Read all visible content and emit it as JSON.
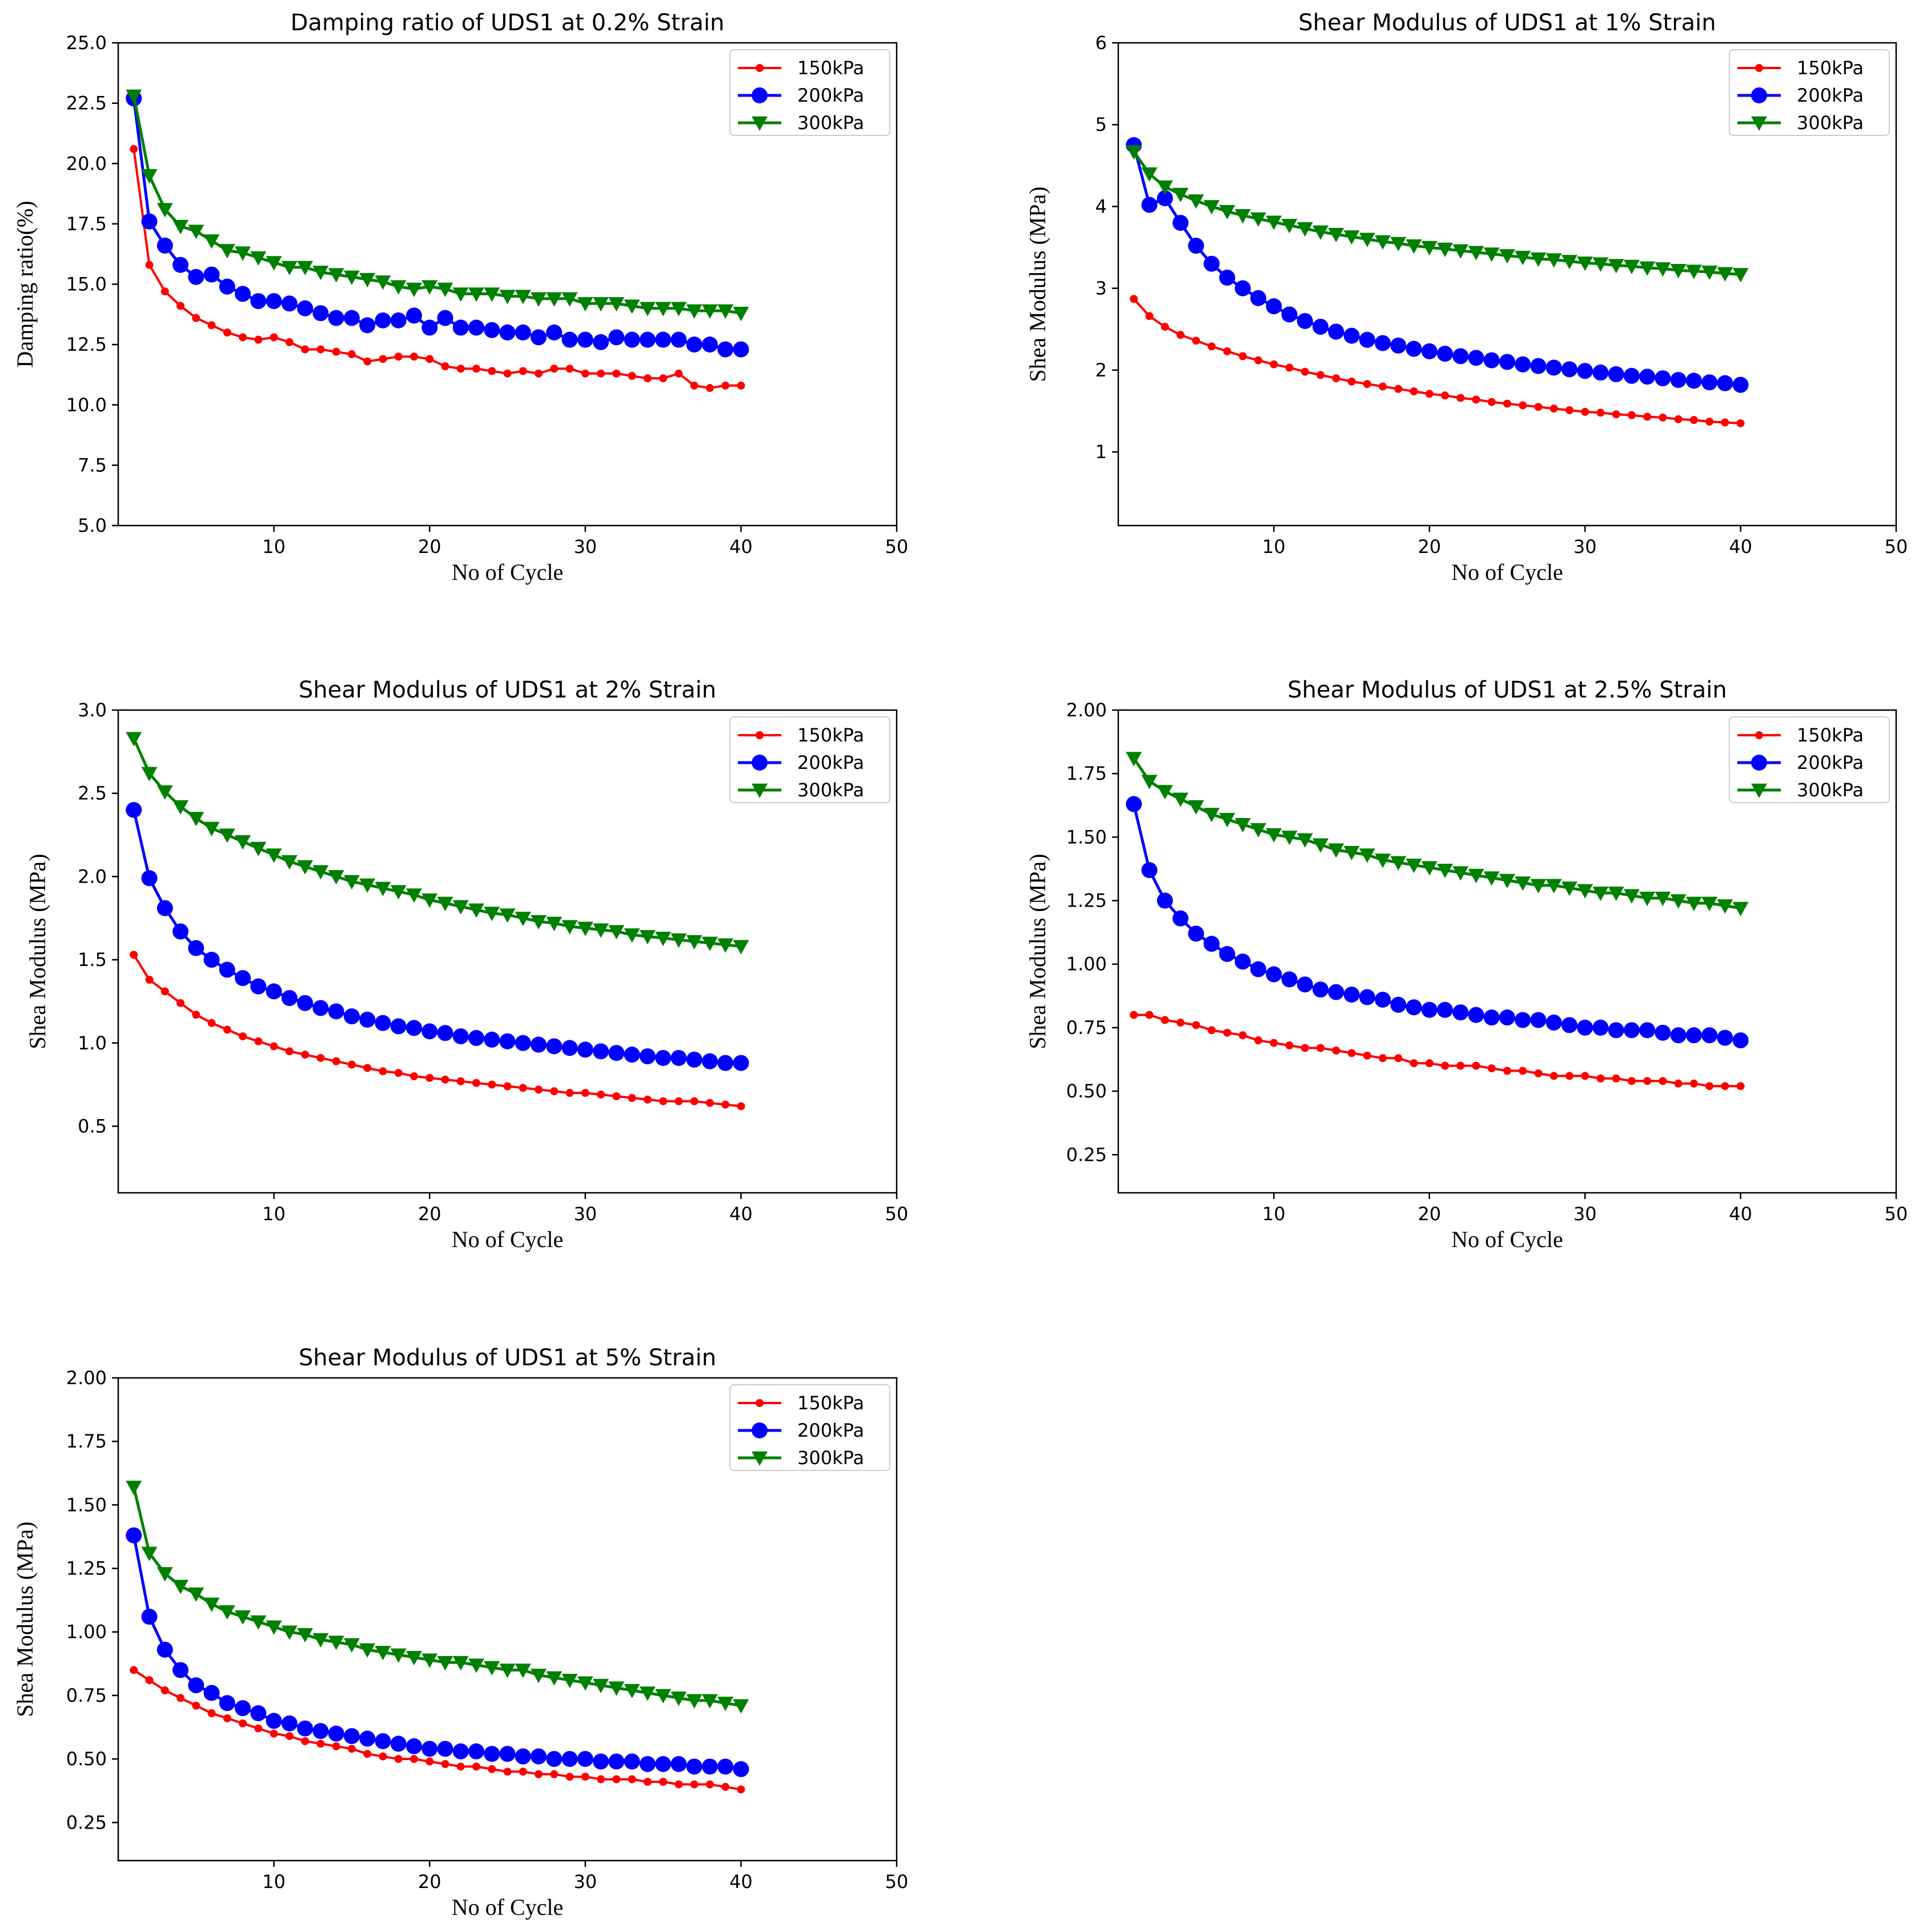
{
  "chart_data": [
    {
      "type": "line",
      "title": "Damping ratio of UDS1 at 0.2% Strain",
      "xlabel": "No of Cycle",
      "ylabel": "Damping ratio(%)",
      "xlim": [
        0,
        50
      ],
      "ylim": [
        5.0,
        25.0
      ],
      "xticks": [
        10,
        20,
        30,
        40,
        50
      ],
      "yticks": [
        5.0,
        7.5,
        10.0,
        12.5,
        15.0,
        17.5,
        20.0,
        22.5,
        25.0
      ],
      "ytick_labels": [
        "5.0",
        "7.5",
        "10.0",
        "12.5",
        "15.0",
        "17.5",
        "20.0",
        "22.5",
        "25.0"
      ],
      "x": [
        1,
        2,
        3,
        4,
        5,
        6,
        7,
        8,
        9,
        10,
        11,
        12,
        13,
        14,
        15,
        16,
        17,
        18,
        19,
        20,
        21,
        22,
        23,
        24,
        25,
        26,
        27,
        28,
        29,
        30,
        31,
        32,
        33,
        34,
        35,
        36,
        37,
        38,
        39,
        40
      ],
      "legend_position": "top-right",
      "series": [
        {
          "name": "150kPa",
          "color": "#ff0000",
          "marker": "dot",
          "values": [
            20.6,
            15.8,
            14.7,
            14.1,
            13.6,
            13.3,
            13.0,
            12.8,
            12.7,
            12.8,
            12.6,
            12.3,
            12.3,
            12.2,
            12.1,
            11.8,
            11.9,
            12.0,
            12.0,
            11.9,
            11.6,
            11.5,
            11.5,
            11.4,
            11.3,
            11.4,
            11.3,
            11.5,
            11.5,
            11.3,
            11.3,
            11.3,
            11.2,
            11.1,
            11.1,
            11.3,
            10.8,
            10.7,
            10.8,
            10.8
          ]
        },
        {
          "name": "200kPa",
          "color": "#0000ff",
          "marker": "circle",
          "values": [
            22.7,
            17.6,
            16.6,
            15.8,
            15.3,
            15.4,
            14.9,
            14.6,
            14.3,
            14.3,
            14.2,
            14.0,
            13.8,
            13.6,
            13.6,
            13.3,
            13.5,
            13.5,
            13.7,
            13.2,
            13.6,
            13.2,
            13.2,
            13.1,
            13.0,
            13.0,
            12.8,
            13.0,
            12.7,
            12.7,
            12.6,
            12.8,
            12.7,
            12.7,
            12.7,
            12.7,
            12.5,
            12.5,
            12.3,
            12.3
          ]
        },
        {
          "name": "300kPa",
          "color": "#008000",
          "marker": "triangle",
          "values": [
            22.8,
            19.5,
            18.1,
            17.4,
            17.2,
            16.8,
            16.4,
            16.3,
            16.1,
            15.9,
            15.7,
            15.7,
            15.5,
            15.4,
            15.3,
            15.2,
            15.1,
            14.9,
            14.8,
            14.9,
            14.8,
            14.6,
            14.6,
            14.6,
            14.5,
            14.5,
            14.4,
            14.4,
            14.4,
            14.2,
            14.2,
            14.2,
            14.1,
            14.0,
            14.0,
            14.0,
            13.9,
            13.9,
            13.9,
            13.8
          ]
        }
      ]
    },
    {
      "type": "line",
      "title": "Shear Modulus of UDS1 at 1% Strain",
      "xlabel": "No of Cycle",
      "ylabel": "Shea Modulus (MPa)",
      "xlim": [
        0,
        50
      ],
      "ylim": [
        0.1,
        6.0
      ],
      "xticks": [
        10,
        20,
        30,
        40,
        50
      ],
      "yticks": [
        1,
        2,
        3,
        4,
        5,
        6
      ],
      "ytick_labels": [
        "1",
        "2",
        "3",
        "4",
        "5",
        "6"
      ],
      "x": [
        1,
        2,
        3,
        4,
        5,
        6,
        7,
        8,
        9,
        10,
        11,
        12,
        13,
        14,
        15,
        16,
        17,
        18,
        19,
        20,
        21,
        22,
        23,
        24,
        25,
        26,
        27,
        28,
        29,
        30,
        31,
        32,
        33,
        34,
        35,
        36,
        37,
        38,
        39,
        40
      ],
      "legend_position": "top-right",
      "series": [
        {
          "name": "150kPa",
          "color": "#ff0000",
          "marker": "dot",
          "values": [
            2.87,
            2.66,
            2.53,
            2.43,
            2.36,
            2.29,
            2.23,
            2.17,
            2.12,
            2.07,
            2.03,
            1.98,
            1.94,
            1.9,
            1.86,
            1.83,
            1.8,
            1.77,
            1.74,
            1.71,
            1.69,
            1.66,
            1.64,
            1.61,
            1.59,
            1.57,
            1.55,
            1.53,
            1.51,
            1.49,
            1.48,
            1.46,
            1.45,
            1.43,
            1.42,
            1.4,
            1.39,
            1.37,
            1.36,
            1.35
          ]
        },
        {
          "name": "200kPa",
          "color": "#0000ff",
          "marker": "circle",
          "values": [
            4.75,
            4.02,
            4.1,
            3.8,
            3.52,
            3.3,
            3.13,
            3.0,
            2.88,
            2.78,
            2.68,
            2.6,
            2.53,
            2.47,
            2.42,
            2.37,
            2.33,
            2.3,
            2.26,
            2.23,
            2.2,
            2.17,
            2.15,
            2.12,
            2.1,
            2.07,
            2.05,
            2.03,
            2.01,
            1.99,
            1.97,
            1.95,
            1.93,
            1.92,
            1.9,
            1.88,
            1.87,
            1.85,
            1.84,
            1.82
          ]
        },
        {
          "name": "300kPa",
          "color": "#008000",
          "marker": "triangle",
          "values": [
            4.67,
            4.4,
            4.24,
            4.15,
            4.07,
            4.0,
            3.94,
            3.89,
            3.85,
            3.81,
            3.77,
            3.73,
            3.69,
            3.66,
            3.63,
            3.6,
            3.57,
            3.55,
            3.52,
            3.5,
            3.48,
            3.46,
            3.44,
            3.42,
            3.4,
            3.38,
            3.36,
            3.35,
            3.33,
            3.31,
            3.3,
            3.28,
            3.27,
            3.25,
            3.24,
            3.22,
            3.21,
            3.2,
            3.18,
            3.17
          ]
        }
      ]
    },
    {
      "type": "line",
      "title": "Shear Modulus of UDS1 at 2% Strain",
      "xlabel": "No of Cycle",
      "ylabel": "Shea Modulus (MPa)",
      "xlim": [
        0,
        50
      ],
      "ylim": [
        0.1,
        3.0
      ],
      "xticks": [
        10,
        20,
        30,
        40,
        50
      ],
      "yticks": [
        0.5,
        1.0,
        1.5,
        2.0,
        2.5,
        3.0
      ],
      "ytick_labels": [
        "0.5",
        "1.0",
        "1.5",
        "2.0",
        "2.5",
        "3.0"
      ],
      "x": [
        1,
        2,
        3,
        4,
        5,
        6,
        7,
        8,
        9,
        10,
        11,
        12,
        13,
        14,
        15,
        16,
        17,
        18,
        19,
        20,
        21,
        22,
        23,
        24,
        25,
        26,
        27,
        28,
        29,
        30,
        31,
        32,
        33,
        34,
        35,
        36,
        37,
        38,
        39,
        40
      ],
      "legend_position": "top-right",
      "series": [
        {
          "name": "150kPa",
          "color": "#ff0000",
          "marker": "dot",
          "values": [
            1.53,
            1.38,
            1.31,
            1.24,
            1.17,
            1.12,
            1.08,
            1.04,
            1.01,
            0.98,
            0.95,
            0.93,
            0.91,
            0.89,
            0.87,
            0.85,
            0.83,
            0.82,
            0.8,
            0.79,
            0.78,
            0.77,
            0.76,
            0.75,
            0.74,
            0.73,
            0.72,
            0.71,
            0.7,
            0.7,
            0.69,
            0.68,
            0.67,
            0.66,
            0.65,
            0.65,
            0.65,
            0.64,
            0.63,
            0.62
          ]
        },
        {
          "name": "200kPa",
          "color": "#0000ff",
          "marker": "circle",
          "values": [
            2.4,
            1.99,
            1.81,
            1.67,
            1.57,
            1.5,
            1.44,
            1.39,
            1.34,
            1.31,
            1.27,
            1.24,
            1.21,
            1.19,
            1.16,
            1.14,
            1.12,
            1.1,
            1.09,
            1.07,
            1.06,
            1.04,
            1.03,
            1.02,
            1.01,
            1.0,
            0.99,
            0.98,
            0.97,
            0.96,
            0.95,
            0.94,
            0.93,
            0.92,
            0.91,
            0.91,
            0.9,
            0.89,
            0.88,
            0.88
          ]
        },
        {
          "name": "300kPa",
          "color": "#008000",
          "marker": "triangle",
          "values": [
            2.83,
            2.62,
            2.51,
            2.42,
            2.35,
            2.29,
            2.25,
            2.21,
            2.17,
            2.13,
            2.09,
            2.06,
            2.03,
            2.0,
            1.97,
            1.95,
            1.93,
            1.91,
            1.89,
            1.86,
            1.84,
            1.82,
            1.8,
            1.78,
            1.77,
            1.75,
            1.73,
            1.72,
            1.7,
            1.69,
            1.68,
            1.67,
            1.65,
            1.64,
            1.63,
            1.62,
            1.61,
            1.6,
            1.59,
            1.58
          ]
        }
      ]
    },
    {
      "type": "line",
      "title": "Shear Modulus of UDS1 at 2.5% Strain",
      "xlabel": "No of Cycle",
      "ylabel": "Shea Modulus (MPa)",
      "xlim": [
        0,
        50
      ],
      "ylim": [
        0.1,
        2.0
      ],
      "xticks": [
        10,
        20,
        30,
        40,
        50
      ],
      "yticks": [
        0.25,
        0.5,
        0.75,
        1.0,
        1.25,
        1.5,
        1.75,
        2.0
      ],
      "ytick_labels": [
        "0.25",
        "0.50",
        "0.75",
        "1.00",
        "1.25",
        "1.50",
        "1.75",
        "2.00"
      ],
      "x": [
        1,
        2,
        3,
        4,
        5,
        6,
        7,
        8,
        9,
        10,
        11,
        12,
        13,
        14,
        15,
        16,
        17,
        18,
        19,
        20,
        21,
        22,
        23,
        24,
        25,
        26,
        27,
        28,
        29,
        30,
        31,
        32,
        33,
        34,
        35,
        36,
        37,
        38,
        39,
        40
      ],
      "legend_position": "top-right",
      "series": [
        {
          "name": "150kPa",
          "color": "#ff0000",
          "marker": "dot",
          "values": [
            0.8,
            0.8,
            0.78,
            0.77,
            0.76,
            0.74,
            0.73,
            0.72,
            0.7,
            0.69,
            0.68,
            0.67,
            0.67,
            0.66,
            0.65,
            0.64,
            0.63,
            0.63,
            0.61,
            0.61,
            0.6,
            0.6,
            0.6,
            0.59,
            0.58,
            0.58,
            0.57,
            0.56,
            0.56,
            0.56,
            0.55,
            0.55,
            0.54,
            0.54,
            0.54,
            0.53,
            0.53,
            0.52,
            0.52,
            0.52
          ]
        },
        {
          "name": "200kPa",
          "color": "#0000ff",
          "marker": "circle",
          "values": [
            1.63,
            1.37,
            1.25,
            1.18,
            1.12,
            1.08,
            1.04,
            1.01,
            0.98,
            0.96,
            0.94,
            0.92,
            0.9,
            0.89,
            0.88,
            0.87,
            0.86,
            0.84,
            0.83,
            0.82,
            0.82,
            0.81,
            0.8,
            0.79,
            0.79,
            0.78,
            0.78,
            0.77,
            0.76,
            0.75,
            0.75,
            0.74,
            0.74,
            0.74,
            0.73,
            0.72,
            0.72,
            0.72,
            0.71,
            0.7
          ]
        },
        {
          "name": "300kPa",
          "color": "#008000",
          "marker": "triangle",
          "values": [
            1.81,
            1.72,
            1.68,
            1.65,
            1.62,
            1.59,
            1.57,
            1.55,
            1.53,
            1.51,
            1.5,
            1.49,
            1.47,
            1.45,
            1.44,
            1.43,
            1.41,
            1.4,
            1.39,
            1.38,
            1.37,
            1.36,
            1.35,
            1.34,
            1.33,
            1.32,
            1.31,
            1.31,
            1.3,
            1.29,
            1.28,
            1.28,
            1.27,
            1.26,
            1.26,
            1.25,
            1.24,
            1.24,
            1.23,
            1.22
          ]
        }
      ]
    },
    {
      "type": "line",
      "title": "Shear Modulus of UDS1 at 5% Strain",
      "xlabel": "No of Cycle",
      "ylabel": "Shea Modulus (MPa)",
      "xlim": [
        0,
        50
      ],
      "ylim": [
        0.1,
        2.0
      ],
      "xticks": [
        10,
        20,
        30,
        40,
        50
      ],
      "yticks": [
        0.25,
        0.5,
        0.75,
        1.0,
        1.25,
        1.5,
        1.75,
        2.0
      ],
      "ytick_labels": [
        "0.25",
        "0.50",
        "0.75",
        "1.00",
        "1.25",
        "1.50",
        "1.75",
        "2.00"
      ],
      "x": [
        1,
        2,
        3,
        4,
        5,
        6,
        7,
        8,
        9,
        10,
        11,
        12,
        13,
        14,
        15,
        16,
        17,
        18,
        19,
        20,
        21,
        22,
        23,
        24,
        25,
        26,
        27,
        28,
        29,
        30,
        31,
        32,
        33,
        34,
        35,
        36,
        37,
        38,
        39,
        40
      ],
      "legend_position": "top-right",
      "series": [
        {
          "name": "150kPa",
          "color": "#ff0000",
          "marker": "dot",
          "values": [
            0.85,
            0.81,
            0.77,
            0.74,
            0.71,
            0.68,
            0.66,
            0.64,
            0.62,
            0.6,
            0.59,
            0.57,
            0.56,
            0.55,
            0.54,
            0.52,
            0.51,
            0.5,
            0.5,
            0.49,
            0.48,
            0.47,
            0.47,
            0.46,
            0.45,
            0.45,
            0.44,
            0.44,
            0.43,
            0.43,
            0.42,
            0.42,
            0.42,
            0.41,
            0.41,
            0.4,
            0.4,
            0.4,
            0.39,
            0.38
          ]
        },
        {
          "name": "200kPa",
          "color": "#0000ff",
          "marker": "circle",
          "values": [
            1.38,
            1.06,
            0.93,
            0.85,
            0.79,
            0.76,
            0.72,
            0.7,
            0.68,
            0.65,
            0.64,
            0.62,
            0.61,
            0.6,
            0.59,
            0.58,
            0.57,
            0.56,
            0.55,
            0.54,
            0.54,
            0.53,
            0.53,
            0.52,
            0.52,
            0.51,
            0.51,
            0.5,
            0.5,
            0.5,
            0.49,
            0.49,
            0.49,
            0.48,
            0.48,
            0.48,
            0.47,
            0.47,
            0.47,
            0.46
          ]
        },
        {
          "name": "300kPa",
          "color": "#008000",
          "marker": "triangle",
          "values": [
            1.57,
            1.31,
            1.23,
            1.18,
            1.15,
            1.11,
            1.08,
            1.06,
            1.04,
            1.02,
            1.0,
            0.99,
            0.97,
            0.96,
            0.95,
            0.93,
            0.92,
            0.91,
            0.9,
            0.89,
            0.88,
            0.88,
            0.87,
            0.86,
            0.85,
            0.85,
            0.83,
            0.82,
            0.81,
            0.8,
            0.79,
            0.78,
            0.77,
            0.76,
            0.75,
            0.74,
            0.73,
            0.73,
            0.72,
            0.71
          ]
        }
      ]
    }
  ]
}
